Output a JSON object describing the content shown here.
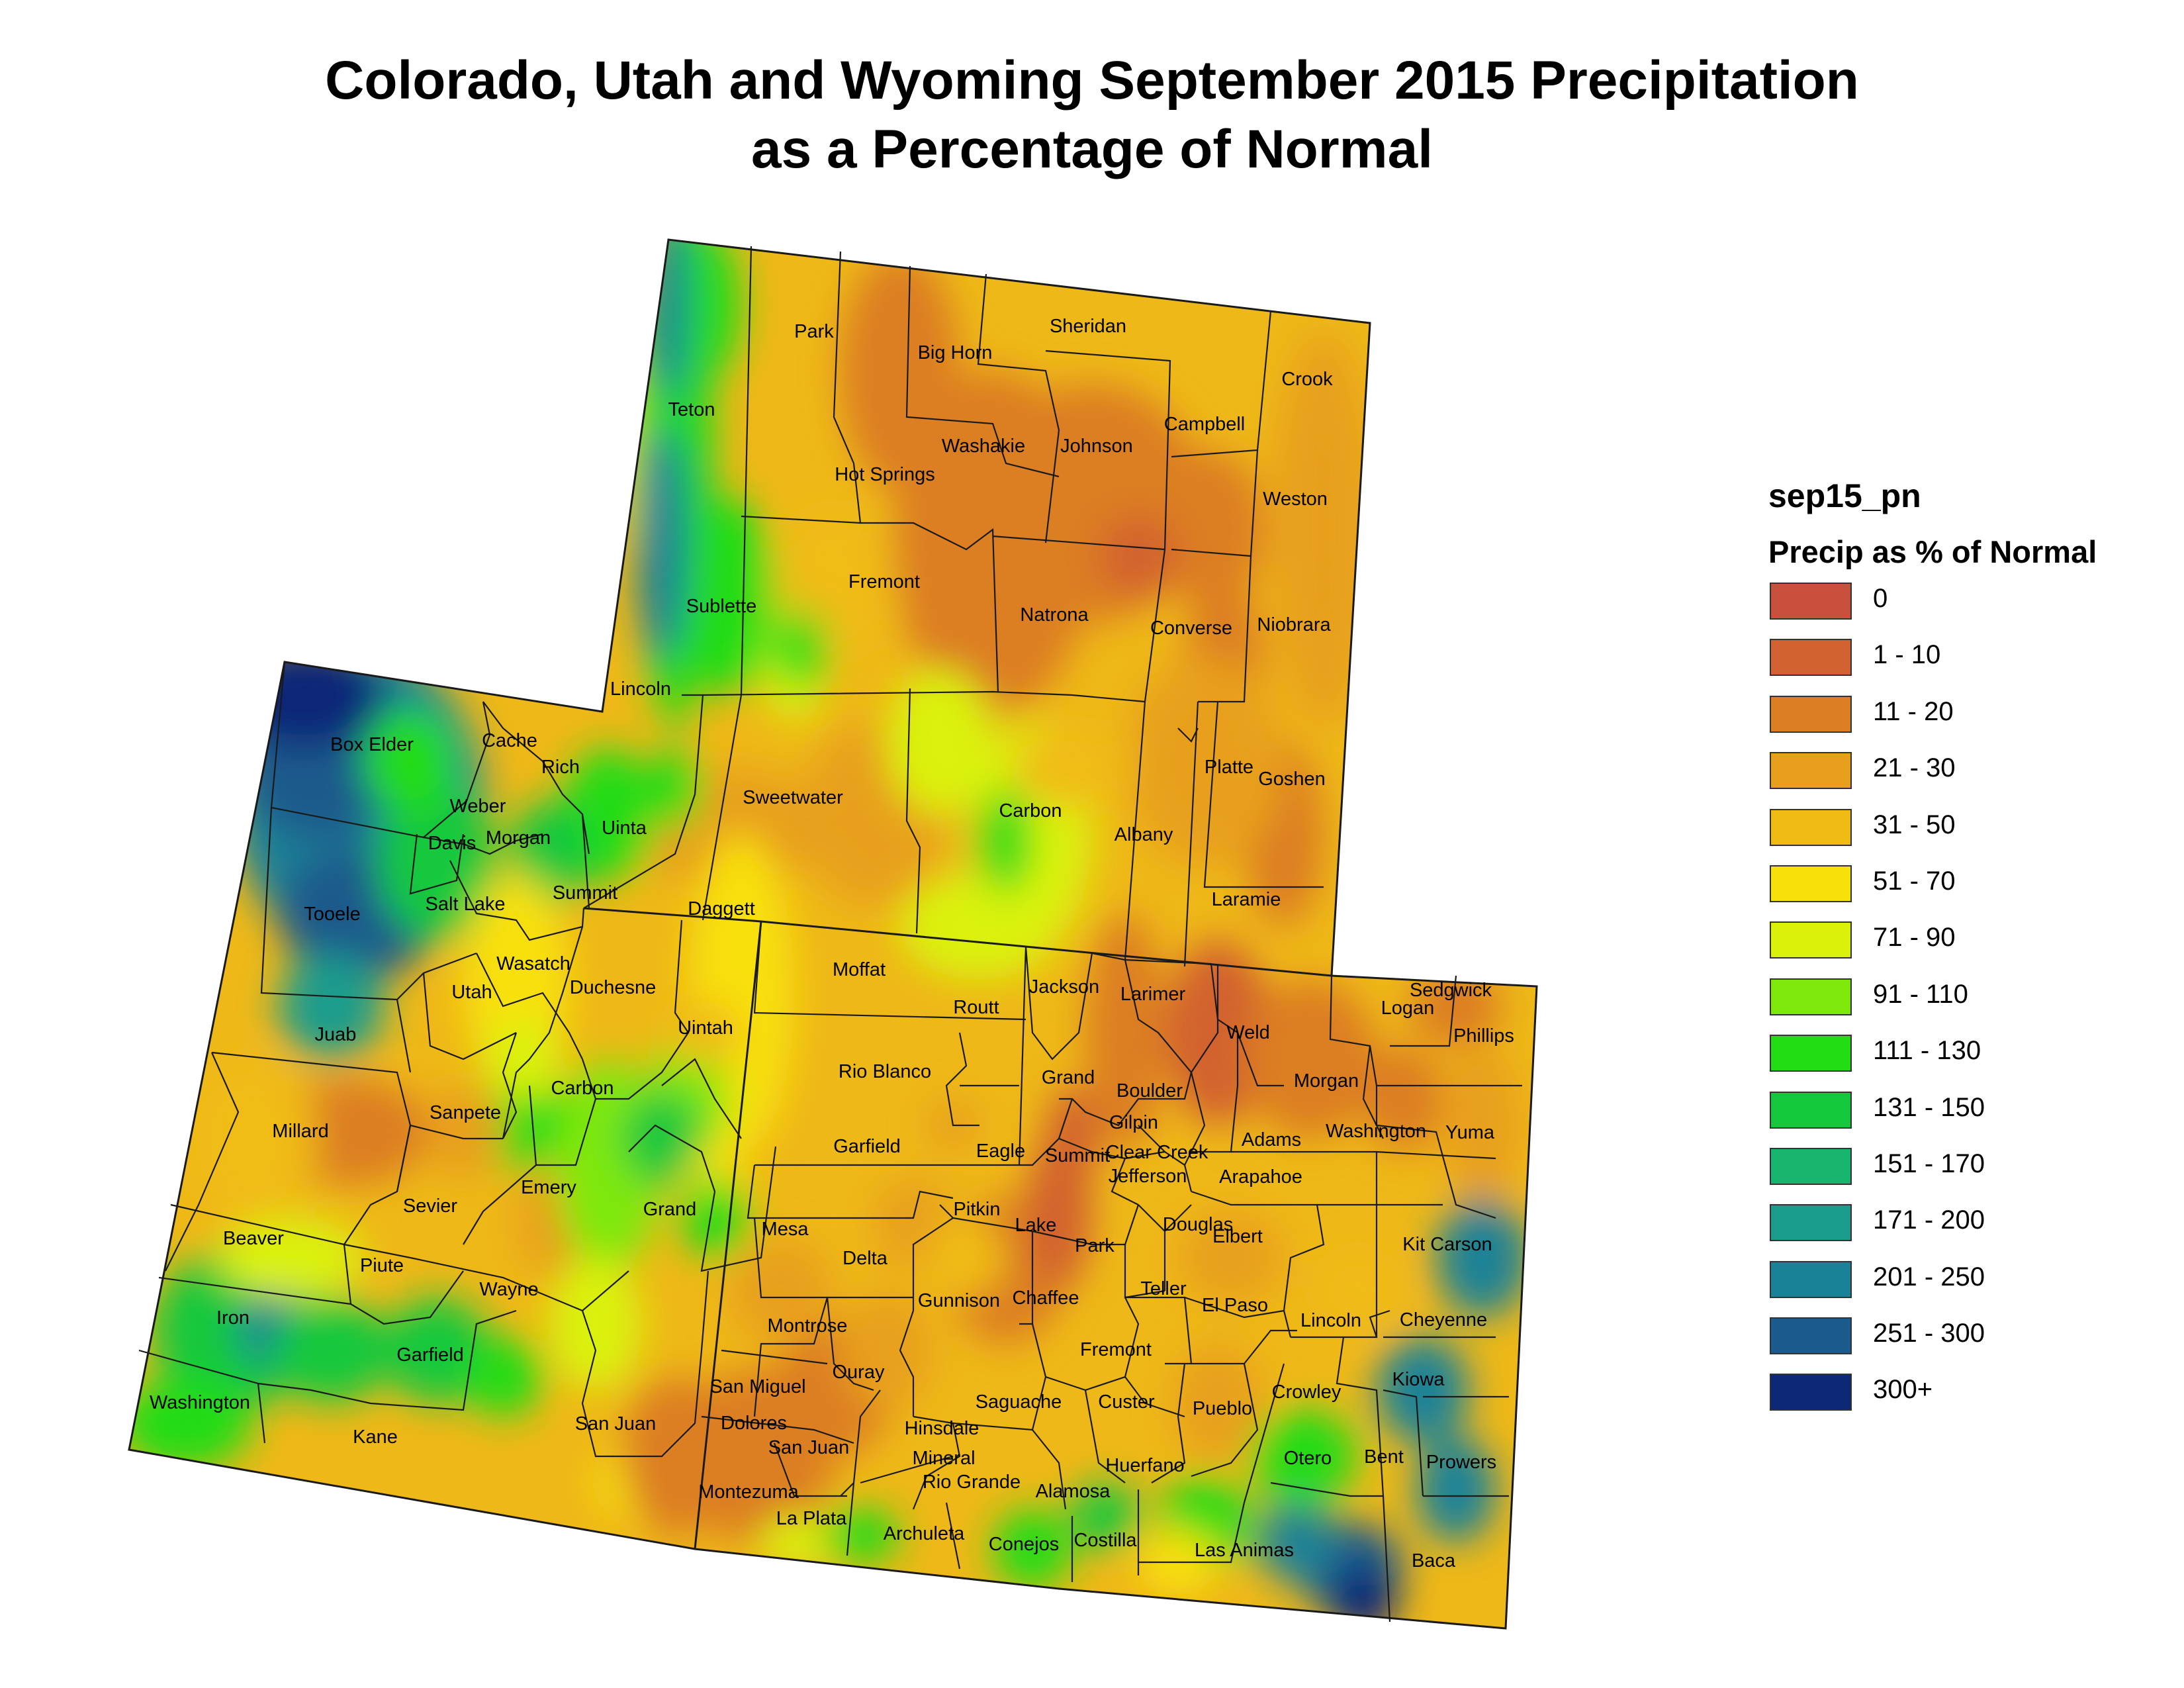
{
  "title_line1": "Colorado, Utah and Wyoming September 2015 Precipitation",
  "title_line2": "as a Percentage of Normal",
  "legend": {
    "title": "sep15_pn",
    "subtitle": "Precip as % of Normal",
    "classes": [
      {
        "label": "0",
        "color": "#c8503c"
      },
      {
        "label": "1 - 10",
        "color": "#d2622f"
      },
      {
        "label": "11 - 20",
        "color": "#dc7e24"
      },
      {
        "label": "21 - 30",
        "color": "#e8a01c"
      },
      {
        "label": "31 - 50",
        "color": "#f0bc14"
      },
      {
        "label": "51 - 70",
        "color": "#f8e00a"
      },
      {
        "label": "71 - 90",
        "color": "#daf20a"
      },
      {
        "label": "91 - 110",
        "color": "#7ee80a"
      },
      {
        "label": "111 - 130",
        "color": "#22dc14"
      },
      {
        "label": "131 - 150",
        "color": "#14c83c"
      },
      {
        "label": "151 - 170",
        "color": "#16b46c"
      },
      {
        "label": "171 - 200",
        "color": "#1a9c8c"
      },
      {
        "label": "201 - 250",
        "color": "#1a8296"
      },
      {
        "label": "251 - 300",
        "color": "#1a5a8c"
      },
      {
        "label": "300+",
        "color": "#0e2878"
      }
    ]
  },
  "counties": {
    "wyoming": [
      "Park",
      "Big Horn",
      "Sheridan",
      "Crook",
      "Teton",
      "Washakie",
      "Johnson",
      "Campbell",
      "Hot Springs",
      "Weston",
      "Fremont",
      "Sublette",
      "Natrona",
      "Converse",
      "Niobrara",
      "Lincoln",
      "Sweetwater",
      "Carbon",
      "Albany",
      "Platte",
      "Goshen",
      "Uinta",
      "Laramie"
    ],
    "utah": [
      "Box Elder",
      "Cache",
      "Rich",
      "Weber",
      "Morgan",
      "Davis",
      "Tooele",
      "Salt Lake",
      "Summit",
      "Daggett",
      "Wasatch",
      "Utah",
      "Duchesne",
      "Uintah",
      "Juab",
      "Carbon",
      "Sanpete",
      "Millard",
      "Emery",
      "Sevier",
      "Grand",
      "Beaver",
      "Piute",
      "Wayne",
      "Iron",
      "Garfield",
      "Washington",
      "Kane",
      "San Juan"
    ],
    "colorado": [
      "Moffat",
      "Jackson",
      "Larimer",
      "Logan",
      "Sedgwick",
      "Phillips",
      "Routt",
      "Weld",
      "Rio Blanco",
      "Grand",
      "Boulder",
      "Morgan",
      "Gilpin",
      "Garfield",
      "Eagle",
      "Summit",
      "Clear Creek",
      "Adams",
      "Washington",
      "Yuma",
      "Jefferson",
      "Arapahoe",
      "Pitkin",
      "Mesa",
      "Lake",
      "Douglas",
      "Elbert",
      "Kit Carson",
      "Park",
      "Delta",
      "Gunnison",
      "Chaffee",
      "Teller",
      "El Paso",
      "Lincoln",
      "Cheyenne",
      "Montrose",
      "Fremont",
      "Kiowa",
      "Ouray",
      "San Miguel",
      "Saguache",
      "Custer",
      "Crowley",
      "Pueblo",
      "Dolores",
      "Hinsdale",
      "San Juan",
      "Mineral",
      "Otero",
      "Bent",
      "Prowers",
      "Huerfano",
      "Rio Grande",
      "Alamosa",
      "Montezuma",
      "La Plata",
      "Archuleta",
      "Conejos",
      "Costilla",
      "Las Animas",
      "Baca"
    ]
  }
}
